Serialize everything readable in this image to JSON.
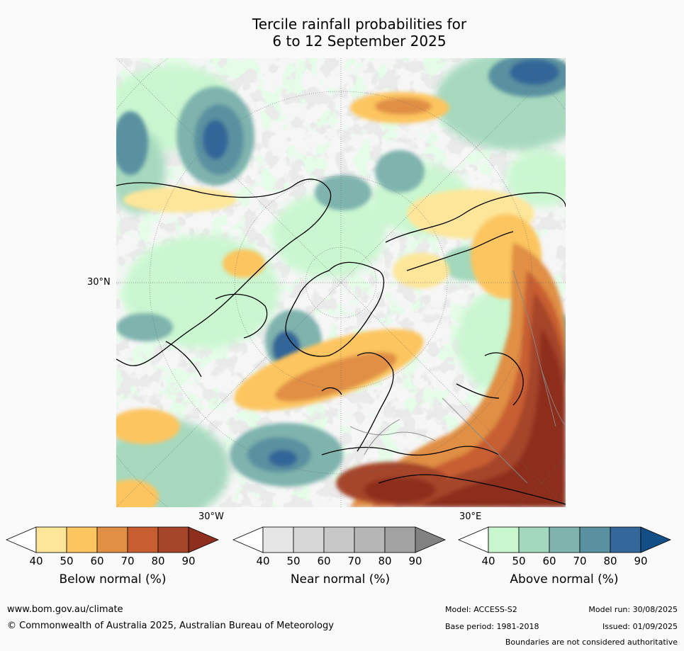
{
  "title": {
    "line1": "Tercile rainfall probabilities for",
    "line2": "6 to 12 September 2025"
  },
  "map": {
    "lat_label": "30°N",
    "lon_label_w": "30°W",
    "lon_label_e": "30°E"
  },
  "colorbars": [
    {
      "label": "Below normal (%)",
      "ticks": [
        "40",
        "50",
        "60",
        "70",
        "80",
        "90"
      ],
      "colors": [
        "#ffffff",
        "#fde69a",
        "#fcc55f",
        "#e08f45",
        "#c85e30",
        "#a5452a",
        "#8d2e1f"
      ]
    },
    {
      "label": "Near normal (%)",
      "ticks": [
        "40",
        "50",
        "60",
        "70",
        "80",
        "90"
      ],
      "colors": [
        "#ffffff",
        "#e6e6e6",
        "#d7d7d7",
        "#c8c8c8",
        "#b6b6b6",
        "#a2a2a2",
        "#828282"
      ]
    },
    {
      "label": "Above normal (%)",
      "ticks": [
        "40",
        "50",
        "60",
        "70",
        "80",
        "90"
      ],
      "colors": [
        "#ffffff",
        "#c8f7cf",
        "#a3d8bc",
        "#7fb3ad",
        "#5a91a0",
        "#336699",
        "#134f86"
      ]
    }
  ],
  "footer": {
    "url": "www.bom.gov.au/climate",
    "copyright": "© Commonwealth of Australia 2025, Australian Bureau of Meteorology",
    "model": "Model: ACCESS-S2",
    "model_run": "Model run: 30/08/2025",
    "base_period": "Base period: 1981-2018",
    "issued": "Issued: 01/09/2025",
    "disclaimer": "Boundaries are not considered authoritative"
  }
}
